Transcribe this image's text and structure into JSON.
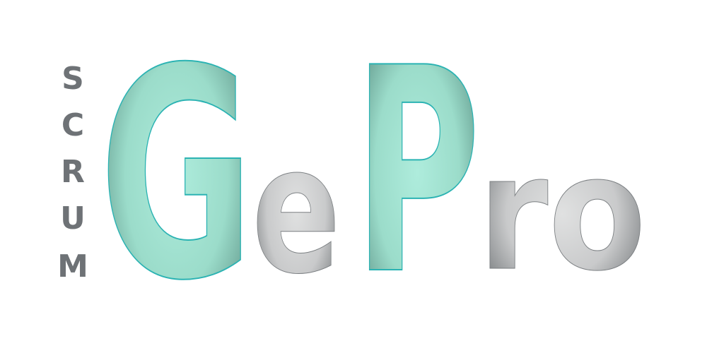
{
  "logo": {
    "vertical_word": "SCRUM",
    "vertical_letters": [
      "S",
      "C",
      "R",
      "U",
      "M"
    ],
    "letter_G": "G",
    "letter_e": "e",
    "letter_P": "P",
    "letters_ro": "ro"
  },
  "colors": {
    "mint_light": "#a8e9d8",
    "mint_dark": "#4f8f7f",
    "mint_outline": "#2bb3b3",
    "gray_light": "#d8d9d9",
    "gray_dark": "#55595c",
    "vertical_text": "#6e7276"
  }
}
